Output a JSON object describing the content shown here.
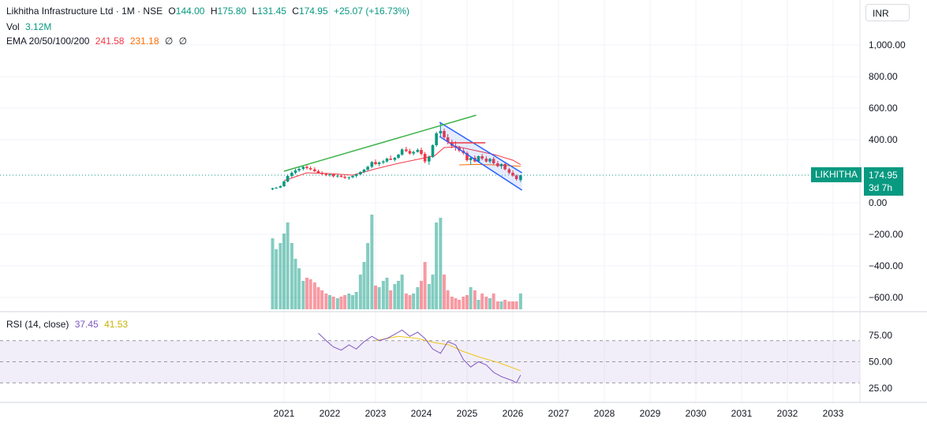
{
  "header": {
    "symbol_line": "Likhitha Infrastructure Ltd · 1M · NSE",
    "open_label": "O",
    "open": "144.00",
    "high_label": "H",
    "high": "175.80",
    "low_label": "L",
    "low": "131.45",
    "close_label": "C",
    "close": "174.95",
    "change": "+25.07 (+16.73%)",
    "vol_label": "Vol",
    "vol_value": "3.12M",
    "ema_label": "EMA 20/50/100/200",
    "ema20": "241.58",
    "ema50": "231.18",
    "ema100": "∅",
    "ema200": "∅"
  },
  "currency": "INR",
  "price_tag": {
    "name": "LIKHITHA",
    "price": "174.95",
    "countdown": "3d 7h"
  },
  "rsi_legend": {
    "label": "RSI (14, close)",
    "rsi": "37.45",
    "ma": "41.53"
  },
  "colors": {
    "up": "#089981",
    "down": "#f23645",
    "trend": "#3db34a",
    "channel": "#2962ff",
    "ema20": "#f23645",
    "ema50": "#ff6d00",
    "rsi": "#7e57c2",
    "rsi_ma": "#f0c419"
  },
  "chart_data": [
    {
      "type": "candlestick",
      "title": "Likhitha Infrastructure Ltd · 1M · NSE",
      "ylabel": "INR",
      "y_ticks": [
        1000,
        800,
        600,
        400,
        0,
        -200,
        -400,
        -600
      ],
      "y_tick_labels": [
        "1,000.00",
        "800.00",
        "600.00",
        "400.00",
        "0.00",
        "−200.00",
        "−400.00",
        "−600.00"
      ],
      "x_ticks": [
        "2021",
        "2022",
        "2023",
        "2024",
        "2025",
        "2026",
        "2027",
        "2028",
        "2029",
        "2030",
        "2031",
        "2032",
        "2033"
      ],
      "x_tick_years": [
        2021,
        2022,
        2023,
        2024,
        2025,
        2026,
        2027,
        2028,
        2029,
        2030,
        2031,
        2032,
        2033
      ],
      "candles": [
        {
          "t": 2020.75,
          "o": 85,
          "h": 95,
          "l": 80,
          "c": 92
        },
        {
          "t": 2020.83,
          "o": 92,
          "h": 100,
          "l": 88,
          "c": 96
        },
        {
          "t": 2020.92,
          "o": 96,
          "h": 110,
          "l": 93,
          "c": 105
        },
        {
          "t": 2021.0,
          "o": 105,
          "h": 140,
          "l": 100,
          "c": 135
        },
        {
          "t": 2021.08,
          "o": 135,
          "h": 180,
          "l": 130,
          "c": 170
        },
        {
          "t": 2021.17,
          "o": 170,
          "h": 200,
          "l": 160,
          "c": 190
        },
        {
          "t": 2021.25,
          "o": 190,
          "h": 215,
          "l": 180,
          "c": 205
        },
        {
          "t": 2021.33,
          "o": 205,
          "h": 225,
          "l": 195,
          "c": 215
        },
        {
          "t": 2021.42,
          "o": 215,
          "h": 235,
          "l": 205,
          "c": 228
        },
        {
          "t": 2021.5,
          "o": 228,
          "h": 240,
          "l": 210,
          "c": 220
        },
        {
          "t": 2021.58,
          "o": 220,
          "h": 232,
          "l": 205,
          "c": 212
        },
        {
          "t": 2021.67,
          "o": 212,
          "h": 225,
          "l": 195,
          "c": 200
        },
        {
          "t": 2021.75,
          "o": 200,
          "h": 210,
          "l": 185,
          "c": 190
        },
        {
          "t": 2021.83,
          "o": 190,
          "h": 200,
          "l": 175,
          "c": 182
        },
        {
          "t": 2021.92,
          "o": 182,
          "h": 190,
          "l": 168,
          "c": 175
        },
        {
          "t": 2022.0,
          "o": 175,
          "h": 185,
          "l": 165,
          "c": 180
        },
        {
          "t": 2022.08,
          "o": 180,
          "h": 186,
          "l": 160,
          "c": 168
        },
        {
          "t": 2022.17,
          "o": 168,
          "h": 178,
          "l": 158,
          "c": 172
        },
        {
          "t": 2022.25,
          "o": 172,
          "h": 180,
          "l": 160,
          "c": 165
        },
        {
          "t": 2022.33,
          "o": 165,
          "h": 172,
          "l": 150,
          "c": 158
        },
        {
          "t": 2022.42,
          "o": 158,
          "h": 166,
          "l": 145,
          "c": 162
        },
        {
          "t": 2022.5,
          "o": 162,
          "h": 175,
          "l": 155,
          "c": 170
        },
        {
          "t": 2022.58,
          "o": 170,
          "h": 185,
          "l": 160,
          "c": 180
        },
        {
          "t": 2022.67,
          "o": 180,
          "h": 200,
          "l": 175,
          "c": 195
        },
        {
          "t": 2022.75,
          "o": 195,
          "h": 215,
          "l": 188,
          "c": 210
        },
        {
          "t": 2022.83,
          "o": 210,
          "h": 235,
          "l": 200,
          "c": 228
        },
        {
          "t": 2022.92,
          "o": 228,
          "h": 265,
          "l": 220,
          "c": 258
        },
        {
          "t": 2023.0,
          "o": 258,
          "h": 275,
          "l": 238,
          "c": 245
        },
        {
          "t": 2023.08,
          "o": 245,
          "h": 262,
          "l": 232,
          "c": 255
        },
        {
          "t": 2023.17,
          "o": 255,
          "h": 272,
          "l": 245,
          "c": 262
        },
        {
          "t": 2023.25,
          "o": 262,
          "h": 285,
          "l": 255,
          "c": 280
        },
        {
          "t": 2023.33,
          "o": 280,
          "h": 300,
          "l": 270,
          "c": 272
        },
        {
          "t": 2023.42,
          "o": 272,
          "h": 290,
          "l": 262,
          "c": 285
        },
        {
          "t": 2023.5,
          "o": 285,
          "h": 310,
          "l": 278,
          "c": 305
        },
        {
          "t": 2023.58,
          "o": 305,
          "h": 345,
          "l": 298,
          "c": 338
        },
        {
          "t": 2023.67,
          "o": 338,
          "h": 355,
          "l": 320,
          "c": 328
        },
        {
          "t": 2023.75,
          "o": 328,
          "h": 342,
          "l": 305,
          "c": 312
        },
        {
          "t": 2023.83,
          "o": 312,
          "h": 330,
          "l": 300,
          "c": 322
        },
        {
          "t": 2023.92,
          "o": 322,
          "h": 345,
          "l": 318,
          "c": 335
        },
        {
          "t": 2024.0,
          "o": 335,
          "h": 350,
          "l": 300,
          "c": 310
        },
        {
          "t": 2024.08,
          "o": 310,
          "h": 322,
          "l": 250,
          "c": 262
        },
        {
          "t": 2024.17,
          "o": 262,
          "h": 300,
          "l": 240,
          "c": 290
        },
        {
          "t": 2024.25,
          "o": 290,
          "h": 370,
          "l": 285,
          "c": 365
        },
        {
          "t": 2024.33,
          "o": 365,
          "h": 450,
          "l": 355,
          "c": 440
        },
        {
          "t": 2024.42,
          "o": 440,
          "h": 505,
          "l": 420,
          "c": 455
        },
        {
          "t": 2024.5,
          "o": 455,
          "h": 470,
          "l": 400,
          "c": 415
        },
        {
          "t": 2024.58,
          "o": 415,
          "h": 435,
          "l": 370,
          "c": 385
        },
        {
          "t": 2024.67,
          "o": 385,
          "h": 400,
          "l": 345,
          "c": 360
        },
        {
          "t": 2024.75,
          "o": 360,
          "h": 390,
          "l": 330,
          "c": 350
        },
        {
          "t": 2024.83,
          "o": 350,
          "h": 360,
          "l": 320,
          "c": 330
        },
        {
          "t": 2024.92,
          "o": 330,
          "h": 345,
          "l": 305,
          "c": 315
        },
        {
          "t": 2025.0,
          "o": 315,
          "h": 325,
          "l": 260,
          "c": 270
        },
        {
          "t": 2025.08,
          "o": 270,
          "h": 290,
          "l": 240,
          "c": 285
        },
        {
          "t": 2025.17,
          "o": 285,
          "h": 300,
          "l": 255,
          "c": 262
        },
        {
          "t": 2025.25,
          "o": 262,
          "h": 300,
          "l": 255,
          "c": 295
        },
        {
          "t": 2025.33,
          "o": 295,
          "h": 310,
          "l": 270,
          "c": 280
        },
        {
          "t": 2025.42,
          "o": 280,
          "h": 295,
          "l": 255,
          "c": 262
        },
        {
          "t": 2025.5,
          "o": 262,
          "h": 285,
          "l": 250,
          "c": 278
        },
        {
          "t": 2025.58,
          "o": 278,
          "h": 290,
          "l": 240,
          "c": 250
        },
        {
          "t": 2025.67,
          "o": 250,
          "h": 265,
          "l": 225,
          "c": 232
        },
        {
          "t": 2025.75,
          "o": 232,
          "h": 250,
          "l": 215,
          "c": 245
        },
        {
          "t": 2025.83,
          "o": 245,
          "h": 255,
          "l": 205,
          "c": 212
        },
        {
          "t": 2025.92,
          "o": 212,
          "h": 222,
          "l": 180,
          "c": 190
        },
        {
          "t": 2026.0,
          "o": 190,
          "h": 205,
          "l": 165,
          "c": 172
        },
        {
          "t": 2026.08,
          "o": 172,
          "h": 180,
          "l": 140,
          "c": 150
        },
        {
          "t": 2026.17,
          "o": 144,
          "h": 175.8,
          "l": 131.45,
          "c": 174.95
        }
      ],
      "volume_units": "relative (0-1)",
      "volume": [
        0.45,
        0.38,
        0.42,
        0.48,
        0.55,
        0.42,
        0.32,
        0.26,
        0.18,
        0.2,
        0.19,
        0.17,
        0.14,
        0.12,
        0.1,
        0.09,
        0.08,
        0.07,
        0.08,
        0.09,
        0.1,
        0.09,
        0.11,
        0.22,
        0.3,
        0.42,
        0.6,
        0.15,
        0.14,
        0.18,
        0.2,
        0.12,
        0.16,
        0.18,
        0.22,
        0.1,
        0.09,
        0.1,
        0.14,
        0.18,
        0.3,
        0.16,
        0.22,
        0.55,
        0.58,
        0.22,
        0.12,
        0.08,
        0.07,
        0.06,
        0.08,
        0.09,
        0.14,
        0.12,
        0.06,
        0.1,
        0.08,
        0.07,
        0.1,
        0.05,
        0.05,
        0.06,
        0.05,
        0.05,
        0.05,
        0.1
      ],
      "ema20": [
        [
          2021.0,
          140
        ],
        [
          2021.5,
          190
        ],
        [
          2022.0,
          185
        ],
        [
          2022.5,
          175
        ],
        [
          2023.0,
          215
        ],
        [
          2023.5,
          250
        ],
        [
          2024.0,
          280
        ],
        [
          2024.3,
          300
        ],
        [
          2024.5,
          350
        ],
        [
          2024.8,
          355
        ],
        [
          2025.2,
          330
        ],
        [
          2025.6,
          305
        ],
        [
          2026.0,
          270
        ],
        [
          2026.17,
          241.58
        ]
      ],
      "ema50": [
        [
          2024.83,
          240
        ],
        [
          2025.2,
          243
        ],
        [
          2025.6,
          240
        ],
        [
          2026.17,
          231.18
        ]
      ],
      "resistance_line": [
        [
          2024.6,
          380
        ],
        [
          2025.4,
          380
        ]
      ],
      "trendline": [
        [
          2021.0,
          200
        ],
        [
          2025.2,
          555
        ]
      ],
      "channel_upper": [
        [
          2024.4,
          510
        ],
        [
          2026.2,
          190
        ]
      ],
      "channel_lower": [
        [
          2024.4,
          420
        ],
        [
          2026.2,
          80
        ]
      ]
    },
    {
      "type": "line",
      "title": "RSI (14, close)",
      "y_ticks": [
        75,
        50,
        25
      ],
      "y_tick_labels": [
        "75.00",
        "50.00",
        "25.00"
      ],
      "band": [
        30,
        70
      ],
      "rsi": [
        [
          2021.75,
          77
        ],
        [
          2021.92,
          70
        ],
        [
          2022.08,
          64
        ],
        [
          2022.25,
          61
        ],
        [
          2022.42,
          66
        ],
        [
          2022.58,
          62
        ],
        [
          2022.75,
          69
        ],
        [
          2022.92,
          74
        ],
        [
          2023.08,
          70
        ],
        [
          2023.25,
          72
        ],
        [
          2023.42,
          76
        ],
        [
          2023.58,
          80
        ],
        [
          2023.75,
          74
        ],
        [
          2023.92,
          78
        ],
        [
          2024.08,
          72
        ],
        [
          2024.25,
          62
        ],
        [
          2024.42,
          58
        ],
        [
          2024.58,
          69
        ],
        [
          2024.75,
          66
        ],
        [
          2024.92,
          52
        ],
        [
          2025.08,
          45
        ],
        [
          2025.25,
          50
        ],
        [
          2025.42,
          47
        ],
        [
          2025.58,
          40
        ],
        [
          2025.75,
          36
        ],
        [
          2026.0,
          32
        ],
        [
          2026.08,
          30
        ],
        [
          2026.17,
          37.45
        ]
      ],
      "rsi_ma": [
        [
          2023.0,
          70
        ],
        [
          2023.5,
          74
        ],
        [
          2023.92,
          72
        ],
        [
          2024.3,
          68
        ],
        [
          2024.6,
          66
        ],
        [
          2024.9,
          60
        ],
        [
          2025.3,
          54
        ],
        [
          2025.7,
          49
        ],
        [
          2026.17,
          41.53
        ]
      ]
    }
  ]
}
